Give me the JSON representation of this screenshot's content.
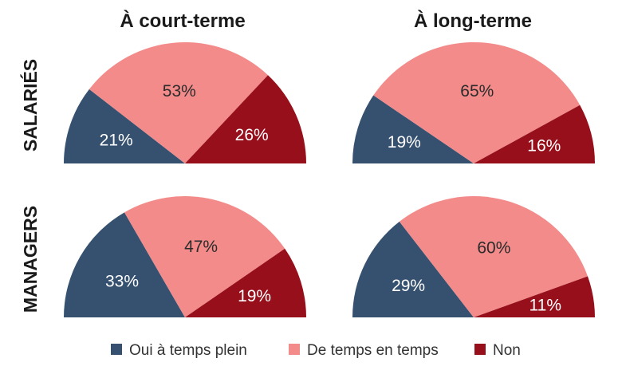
{
  "chart_data": {
    "type": "pie",
    "variant": "semi-circle",
    "columns": [
      "À court-terme",
      "À long-terme"
    ],
    "rows": [
      "SALARIÉS",
      "MANAGERS"
    ],
    "categories": [
      "Oui à temps plein",
      "De temps en temps",
      "Non"
    ],
    "colors": [
      "#36516f",
      "#f28b8a",
      "#960f1a"
    ],
    "value_unit": "%",
    "legend_position": "bottom",
    "panels": [
      {
        "row": "SALARIÉS",
        "column": "À court-terme",
        "values": [
          21,
          53,
          26
        ]
      },
      {
        "row": "SALARIÉS",
        "column": "À long-terme",
        "values": [
          19,
          65,
          16
        ]
      },
      {
        "row": "MANAGERS",
        "column": "À court-terme",
        "values": [
          33,
          47,
          19
        ]
      },
      {
        "row": "MANAGERS",
        "column": "À long-terme",
        "values": [
          29,
          60,
          11
        ]
      }
    ]
  }
}
